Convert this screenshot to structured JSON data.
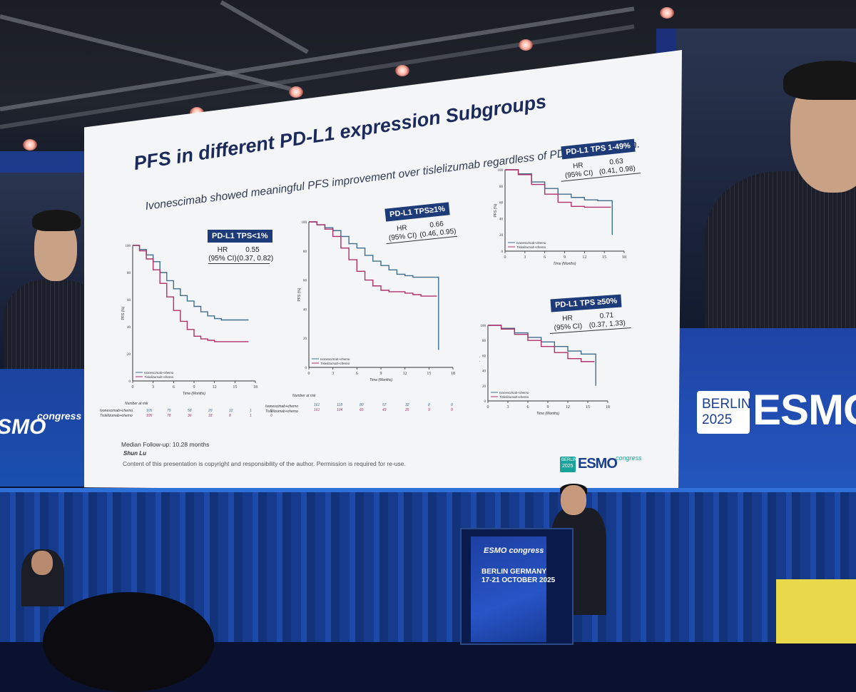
{
  "slide": {
    "title": "PFS in different PD-L1 expression Subgroups",
    "subtitle": "Ivonescimab showed meaningful PFS improvement over tislelizumab regardless of PD-L1 expression.",
    "footer_followup": "Median Follow-up: 10.28 months",
    "footer_author": "Shun Lu",
    "footer_copyright": "Content of this presentation is copyright and responsibility of the author. Permission is required for re-use.",
    "logo_year_top": "BERLIN",
    "logo_year_bottom": "2025",
    "logo_brand": "ESMO",
    "logo_suffix": "congress"
  },
  "panels": [
    {
      "label": "PD-L1 TPS<1%",
      "hr_label": "HR",
      "ci_label": "(95% CI)",
      "hr": "0.55",
      "ci": "(0.37, 0.82)"
    },
    {
      "label": "PD-L1 TPS≥1%",
      "hr_label": "HR",
      "ci_label": "(95% CI)",
      "hr": "0.66",
      "ci": "(0.46, 0.95)"
    },
    {
      "label": "PD-L1 TPS 1-49%",
      "hr_label": "HR",
      "ci_label": "(95% CI)",
      "hr": "0.63",
      "ci": "(0.41, 0.98)"
    },
    {
      "label": "PD-L1 TPS ≥50%",
      "hr_label": "HR",
      "ci_label": "(95% CI)",
      "hr": "0.71",
      "ci": "(0.37, 1.33)"
    }
  ],
  "axes": {
    "x_label": "Time (Months)",
    "y_label": "PFS (%)",
    "x_ticks": [
      "0",
      "3",
      "6",
      "9",
      "12",
      "15",
      "18"
    ],
    "y_ticks": [
      "0",
      "20",
      "40",
      "60",
      "80",
      "100"
    ],
    "number_at_risk": "Number at risk"
  },
  "legend": {
    "ivo": "Ivonescimab+chemo",
    "tis": "Tislelizumab+chemo",
    "ivo_color": "#3f6e8c",
    "tis_color": "#b0306a"
  },
  "risk_tables": [
    {
      "ivo": [
        "105",
        "79",
        "58",
        "29",
        "12",
        "1",
        "0"
      ],
      "tis": [
        "105",
        "78",
        "36",
        "18",
        "8",
        "1",
        "0"
      ]
    },
    {
      "ivo": [
        "161",
        "118",
        "80",
        "57",
        "32",
        "8",
        "0"
      ],
      "tis": [
        "161",
        "104",
        "65",
        "43",
        "25",
        "9",
        "0"
      ]
    }
  ],
  "venue": {
    "left_logo": "SMO",
    "left_logo_sub": "congress",
    "right_city": "BERLIN",
    "right_year": "2025",
    "right_brand": "ESMO",
    "podium_brand": "ESMO congress",
    "podium_city": "BERLIN GERMANY",
    "podium_dates": "17-21 OCTOBER 2025"
  },
  "chart_data": [
    {
      "type": "line",
      "title": "PD-L1 TPS<1%",
      "xlabel": "Time (Months)",
      "ylabel": "PFS (%)",
      "xlim": [
        0,
        18
      ],
      "ylim": [
        0,
        100
      ],
      "series": [
        {
          "name": "Ivonescimab+chemo",
          "x": [
            0,
            1,
            2,
            3,
            4,
            5,
            6,
            7,
            8,
            9,
            10,
            11,
            12,
            13,
            14,
            15,
            17
          ],
          "y": [
            100,
            97,
            93,
            88,
            80,
            74,
            68,
            63,
            59,
            55,
            51,
            48,
            46,
            45,
            45,
            45,
            45
          ]
        },
        {
          "name": "Tislelizumab+chemo",
          "x": [
            0,
            1,
            2,
            3,
            4,
            5,
            6,
            7,
            8,
            9,
            10,
            11,
            12,
            13,
            14,
            15,
            17
          ],
          "y": [
            100,
            96,
            90,
            82,
            72,
            62,
            52,
            44,
            38,
            33,
            31,
            30,
            29,
            29,
            29,
            29,
            29
          ]
        }
      ]
    },
    {
      "type": "line",
      "title": "PD-L1 TPS≥1%",
      "xlabel": "Time (Months)",
      "ylabel": "PFS (%)",
      "xlim": [
        0,
        18
      ],
      "ylim": [
        0,
        100
      ],
      "series": [
        {
          "name": "Ivonescimab+chemo",
          "x": [
            0,
            1,
            2,
            3,
            4,
            5,
            6,
            7,
            8,
            9,
            10,
            11,
            12,
            13,
            14,
            15,
            16,
            16.2
          ],
          "y": [
            100,
            98,
            96,
            94,
            90,
            85,
            82,
            77,
            73,
            70,
            67,
            64,
            63,
            62,
            62,
            62,
            62,
            12
          ]
        },
        {
          "name": "Tislelizumab+chemo",
          "x": [
            0,
            1,
            2,
            3,
            4,
            5,
            6,
            7,
            8,
            9,
            10,
            11,
            12,
            13,
            14,
            15,
            16
          ],
          "y": [
            100,
            98,
            95,
            90,
            82,
            74,
            66,
            60,
            56,
            53,
            52,
            52,
            51,
            50,
            49,
            49,
            49
          ]
        }
      ]
    },
    {
      "type": "line",
      "title": "PD-L1 TPS 1-49%",
      "xlabel": "Time (Months)",
      "ylabel": "PFS (%)",
      "xlim": [
        0,
        18
      ],
      "ylim": [
        0,
        100
      ],
      "series": [
        {
          "name": "Ivonescimab+chemo",
          "x": [
            0,
            2,
            4,
            6,
            8,
            10,
            12,
            14,
            16,
            16.2
          ],
          "y": [
            100,
            95,
            85,
            77,
            70,
            66,
            63,
            62,
            62,
            20
          ]
        },
        {
          "name": "Tislelizumab+chemo",
          "x": [
            0,
            2,
            4,
            6,
            8,
            10,
            12,
            14,
            16
          ],
          "y": [
            100,
            94,
            82,
            70,
            60,
            55,
            54,
            54,
            54
          ]
        }
      ]
    },
    {
      "type": "line",
      "title": "PD-L1 TPS ≥50%",
      "xlabel": "Time (Months)",
      "ylabel": "PFS (%)",
      "xlim": [
        0,
        18
      ],
      "ylim": [
        0,
        100
      ],
      "series": [
        {
          "name": "Ivonescimab+chemo",
          "x": [
            0,
            2,
            4,
            6,
            8,
            10,
            12,
            14,
            16,
            16.2
          ],
          "y": [
            100,
            96,
            90,
            84,
            78,
            72,
            66,
            62,
            62,
            20
          ]
        },
        {
          "name": "Tislelizumab+chemo",
          "x": [
            0,
            2,
            4,
            6,
            8,
            10,
            12,
            14,
            16
          ],
          "y": [
            100,
            95,
            88,
            80,
            72,
            64,
            56,
            52,
            52
          ]
        }
      ]
    }
  ]
}
